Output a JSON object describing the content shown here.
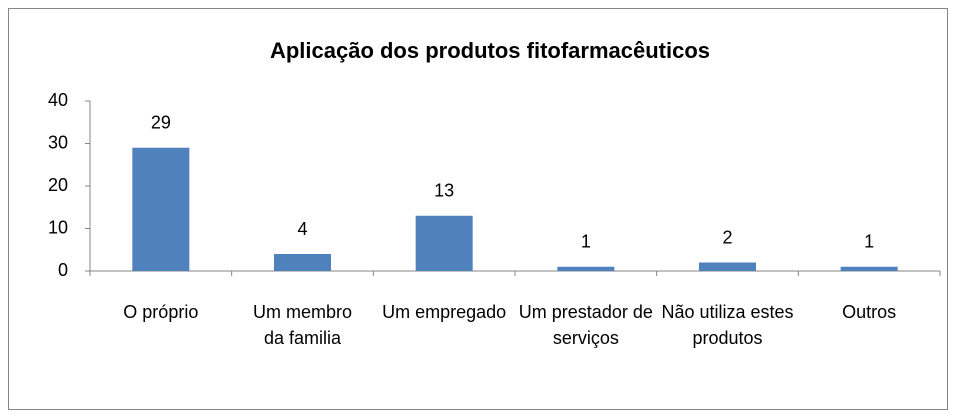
{
  "chart_data": {
    "type": "bar",
    "title": "Aplicação dos produtos fitofarmacêuticos",
    "categories": [
      "O próprio",
      "Um membro da familia",
      "Um empregado",
      "Um prestador de serviços",
      "Não utiliza estes produtos",
      "Outros"
    ],
    "values": [
      29,
      4,
      13,
      1,
      2,
      1
    ],
    "color": "#4f81bd",
    "ylim": [
      0,
      40
    ],
    "yticks": [
      0,
      10,
      20,
      30,
      40
    ],
    "grid": false
  }
}
